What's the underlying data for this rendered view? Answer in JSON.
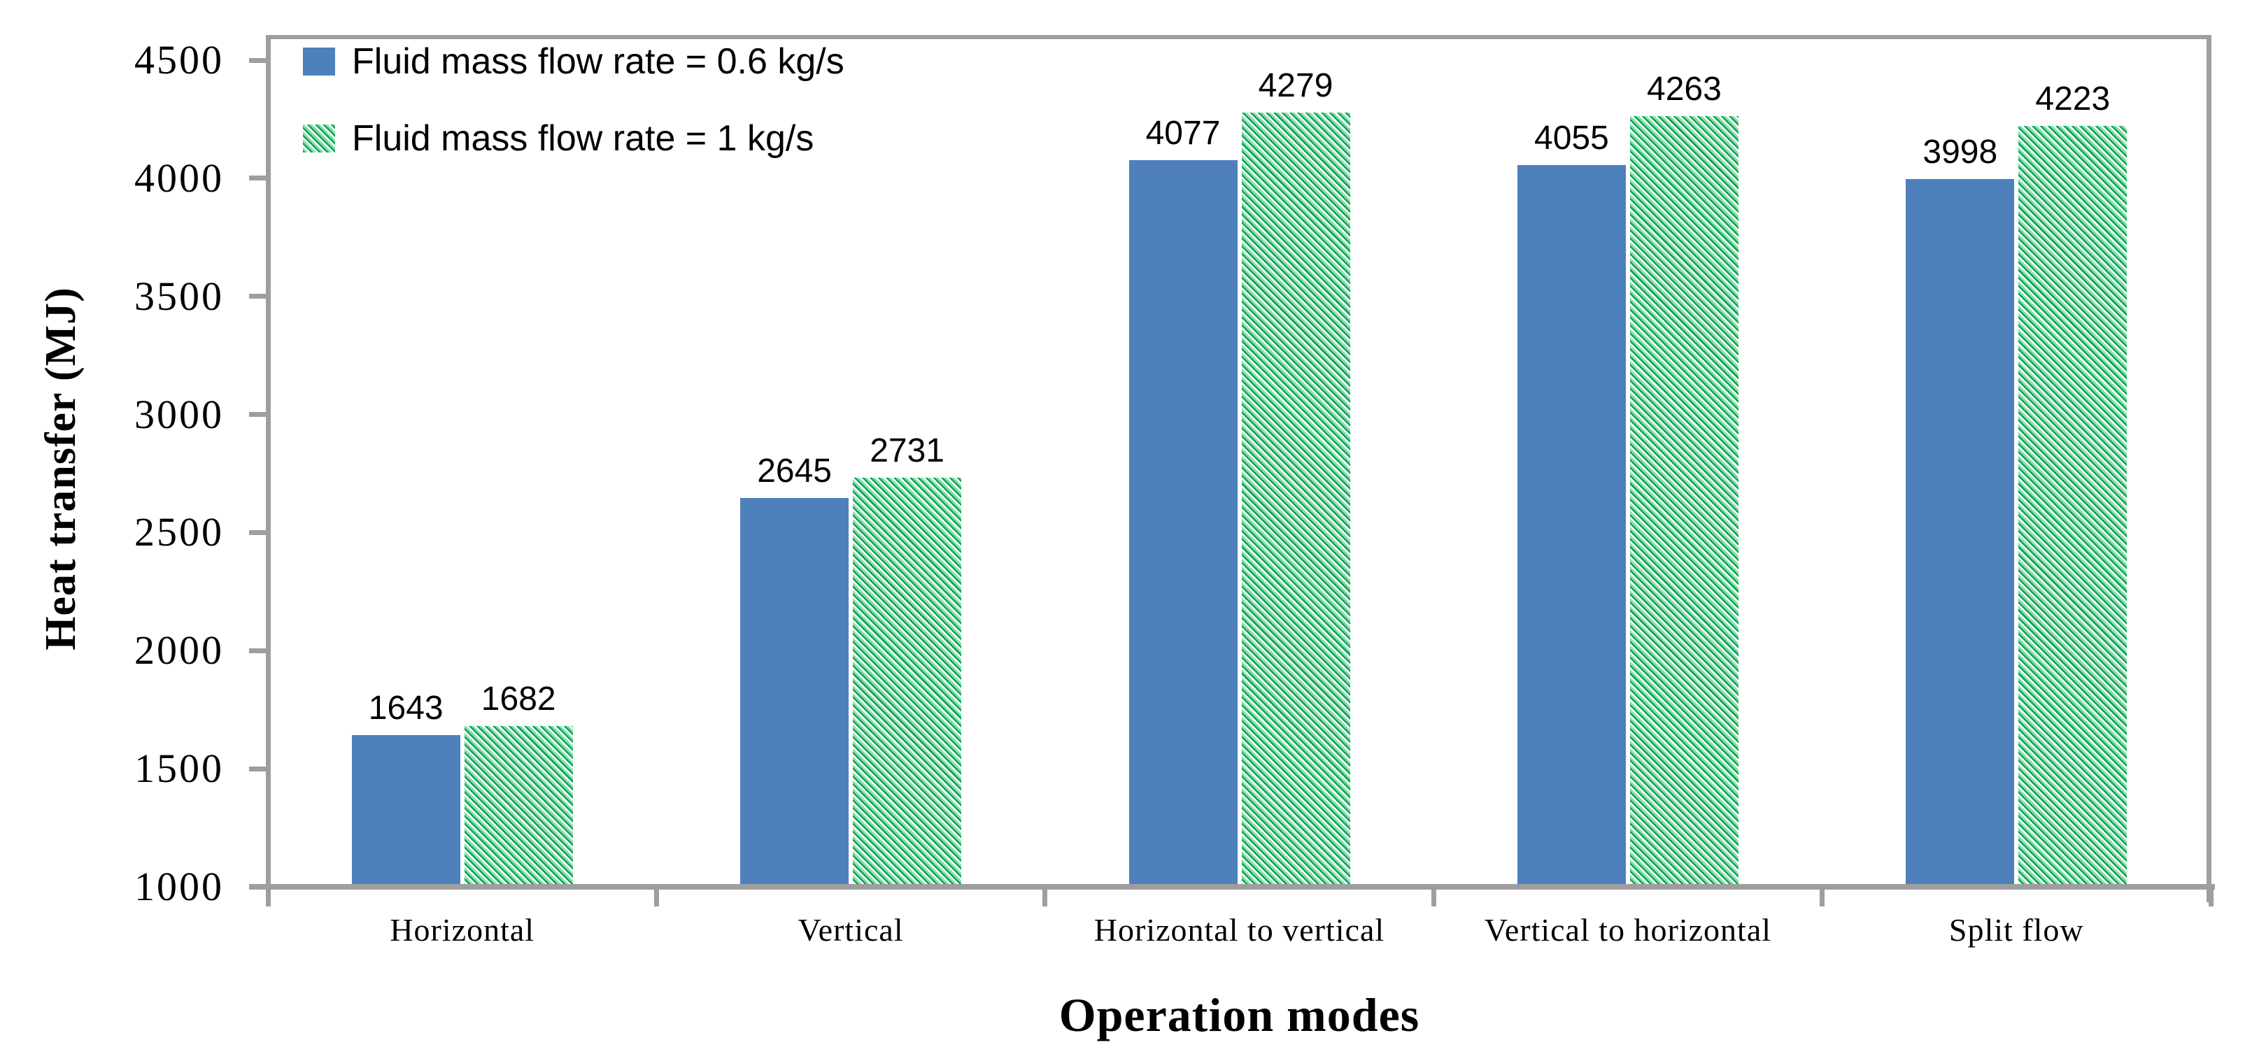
{
  "chart_data": {
    "type": "bar",
    "title": "",
    "categories": [
      "Horizontal",
      "Vertical",
      "Horizontal  to vertical",
      "Vertical to horizontal",
      "Split flow"
    ],
    "series": [
      {
        "name": "Fluid mass flow rate = 0.6 kg/s",
        "pattern": "solid",
        "color": "#4E80BC",
        "values": [
          1643,
          2645,
          4077,
          4055,
          3998
        ]
      },
      {
        "name": "Fluid mass flow rate = 1 kg/s",
        "pattern": "diagonal-hatch",
        "color": "#00A851",
        "hatch_light_color": "#8FDCAF",
        "hatch_background": "#FFFFFF",
        "values": [
          1682,
          2731,
          4279,
          4263,
          4223
        ]
      }
    ],
    "data_labels": [
      [
        "1643",
        "2645",
        "4077",
        "4055",
        "3998"
      ],
      [
        "1682",
        "2731",
        "4279",
        "4263",
        "4223"
      ]
    ],
    "xlabel": "Operation modes",
    "ylabel": "Heat transfer (MJ)",
    "ylim": [
      1000,
      4500
    ],
    "ytick_step": 500,
    "yticks": [
      "1000",
      "1500",
      "2000",
      "2500",
      "3000",
      "3500",
      "4000",
      "4500"
    ],
    "grid": false,
    "legend_position": "top-left-inside",
    "axis_color": "#9E9E9E",
    "text_color": "#000000"
  }
}
